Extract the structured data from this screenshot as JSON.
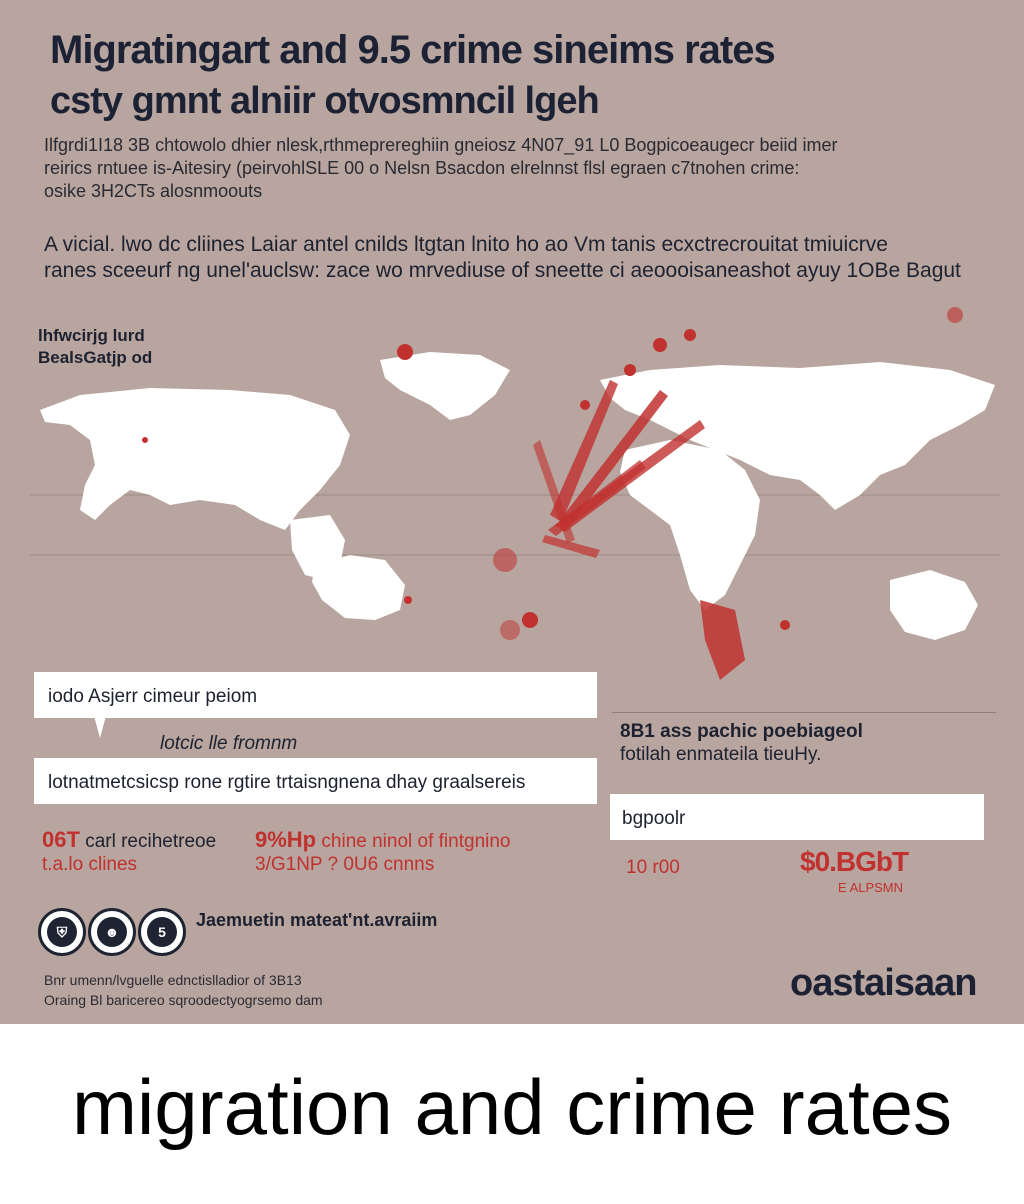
{
  "poster": {
    "title_line1": "Migratingart and 9.5 crime sineims rates",
    "title_line2": "csty gmnt alniir otvosmncil lgeh",
    "intro_lines": [
      "Ilfgrdi1I18 3B chtowolo dhier nlesk,rthmeprereghiin gneiosz 4N07_91 L0 Bogpicoeaugecr beiid imer",
      "reirics rntuee is-Aitesiry (peirvohlSLE 00 o Nelsn Bsacdon elrelnnst flsl egraen c7tnohen crime:",
      "osike 3H2CTs alosnmoouts"
    ],
    "lead_lines": [
      "A vicial. lwo dc cliines Laiar antel cnilds ltgtan lnito ho ao Vm tanis ecxctrecrouitat tmiuicrve",
      "ranes sceeurf ng unel'auclsw: zace wo mrvediuse of sneette ci aeoooisaneashot ayuy 1OBe Bagut"
    ],
    "map_label_lines": [
      "lhfwcirjg lurd",
      "BealsGatjp od"
    ],
    "panel_a": "iodo Asjerr cimeur peiom",
    "panel_a_sub": "lotcic lle fromnm",
    "panel_b": "lotnatmetcsicsp rone rgtire trtaisngnena dhay graalsereis",
    "stats_left": [
      {
        "value": "06T",
        "text": "carl recihetreoe",
        "sub": "t.a.lo clines"
      },
      {
        "value": "9%Hp",
        "text": "chine ninol of fintgnino",
        "sub": "3/G1NP ? 0U6 cnnns"
      }
    ],
    "right_head_bold": "8B1 ass pachic poebiageol",
    "right_head_sub": "fotilah enmateila tieuHy.",
    "panel_c": "bgpoolr",
    "stat_right_left": "10 r00",
    "stat_right_value": "$0.BGbT",
    "stat_right_sub": "E ALPSMN",
    "badges": [
      {
        "icon": "shield-icon",
        "glyph": "⛨"
      },
      {
        "icon": "person-icon",
        "glyph": "☻"
      },
      {
        "icon": "coin-icon",
        "glyph": "5"
      }
    ],
    "badges_label": "Jaemuetin mateat'nt.avraiim",
    "footer_lines": [
      "Bnr umenn/lvguelle ednctislladior of 3B13",
      "Oraing Bl baricereo sqroodectyogrsemo dam"
    ],
    "brand": "oastaisaan"
  },
  "caption": "migration and crime rates",
  "colors": {
    "background": "#b8a59f",
    "ink": "#1c2233",
    "accent_red": "#c0312f",
    "panel": "#ffffff",
    "map_land": "#ffffff"
  }
}
